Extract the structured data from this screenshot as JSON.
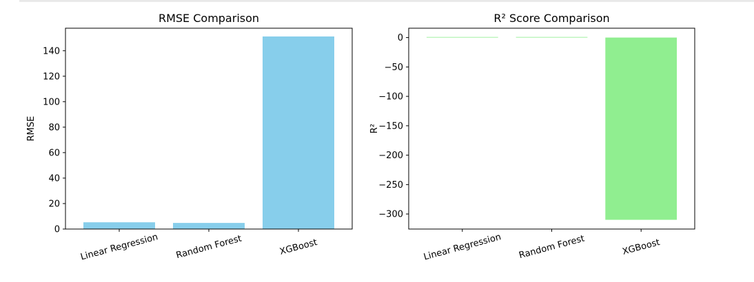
{
  "chart_data": [
    {
      "type": "bar",
      "title": "RMSE Comparison",
      "xlabel": "",
      "ylabel": "RMSE",
      "categories": [
        "Linear Regression",
        "Random Forest",
        "XGBoost"
      ],
      "values": [
        5.3,
        4.8,
        151.2
      ],
      "ylim": [
        0,
        157.7
      ],
      "yticks": [
        0,
        20,
        40,
        60,
        80,
        100,
        120,
        140
      ],
      "ytick_labels": [
        "0",
        "20",
        "40",
        "60",
        "80",
        "100",
        "120",
        "140"
      ],
      "bar_color": "#87ceeb",
      "grid": false
    },
    {
      "type": "bar",
      "title": "R² Score Comparison",
      "xlabel": "",
      "ylabel": "R²",
      "categories": [
        "Linear Regression",
        "Random Forest",
        "XGBoost"
      ],
      "values": [
        0.98,
        0.99,
        -309.9
      ],
      "ylim": [
        -325.6,
        15.9
      ],
      "yticks": [
        0,
        -50,
        -100,
        -150,
        -200,
        -250,
        -300
      ],
      "ytick_labels": [
        "0",
        "−50",
        "−100",
        "−150",
        "−200",
        "−250",
        "−300"
      ],
      "bar_color": "#90ee90",
      "grid": false
    }
  ]
}
